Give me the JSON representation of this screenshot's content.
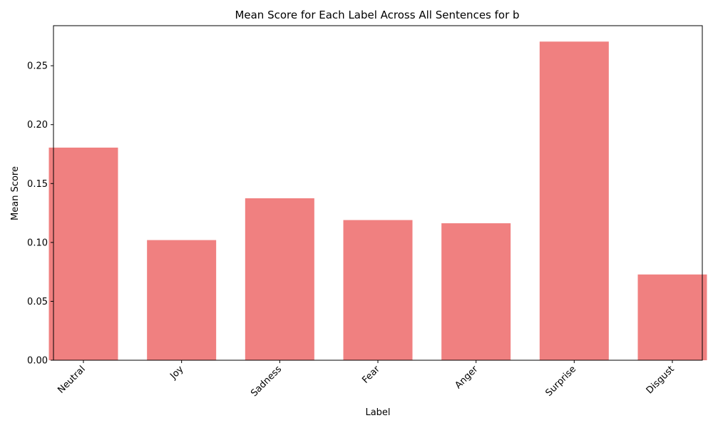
{
  "chart_data": {
    "type": "bar",
    "title": "Mean Score for Each Label Across All Sentences for b",
    "xlabel": "Label",
    "ylabel": "Mean Score",
    "categories": [
      "Neutral",
      "Joy",
      "Sadness",
      "Fear",
      "Anger",
      "Surprise",
      "Disgust"
    ],
    "values": [
      0.1805,
      0.102,
      0.1375,
      0.119,
      0.1163,
      0.2705,
      0.0728
    ],
    "ylim": [
      0,
      0.284
    ],
    "yticks": [
      "0.00",
      "0.05",
      "0.10",
      "0.15",
      "0.20",
      "0.25"
    ],
    "ytick_values": [
      0,
      0.05,
      0.1,
      0.15,
      0.2,
      0.25
    ],
    "bar_color": "#f08080",
    "grid": false,
    "legend": "none"
  }
}
